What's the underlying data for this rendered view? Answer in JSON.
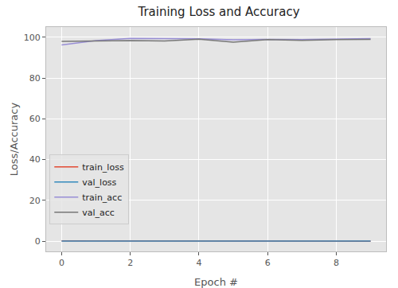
{
  "chart_data": {
    "type": "line",
    "title": "Training Loss and Accuracy",
    "x_label": "Epoch #",
    "y_label": "Loss/Accuracy",
    "x": [
      0,
      1,
      2,
      3,
      4,
      5,
      6,
      7,
      8,
      9
    ],
    "series": [
      {
        "name": "train_loss",
        "color": "#E24A33",
        "values": [
          0.12,
          0.05,
          0.02,
          0.02,
          0.03,
          0.04,
          0.03,
          0.03,
          0.02,
          0.02
        ]
      },
      {
        "name": "val_loss",
        "color": "#348ABD",
        "values": [
          0.06,
          0.05,
          0.05,
          0.06,
          0.03,
          0.07,
          0.04,
          0.05,
          0.04,
          0.04
        ]
      },
      {
        "name": "train_acc",
        "color": "#988ED5",
        "values": [
          96.2,
          98.4,
          99.4,
          99.3,
          99.2,
          98.8,
          99.0,
          98.9,
          99.2,
          99.3
        ]
      },
      {
        "name": "val_acc",
        "color": "#777777",
        "values": [
          98.0,
          98.3,
          98.4,
          98.2,
          99.1,
          97.6,
          98.9,
          98.5,
          98.9,
          99.0
        ]
      }
    ],
    "xlim": [
      -0.45,
      9.45
    ],
    "xticks": [
      0,
      2,
      4,
      6,
      8
    ],
    "ylim": [
      -5,
      105
    ],
    "yticks": [
      0,
      20,
      40,
      60,
      80,
      100
    ],
    "grid": true,
    "legend": "lower left"
  }
}
